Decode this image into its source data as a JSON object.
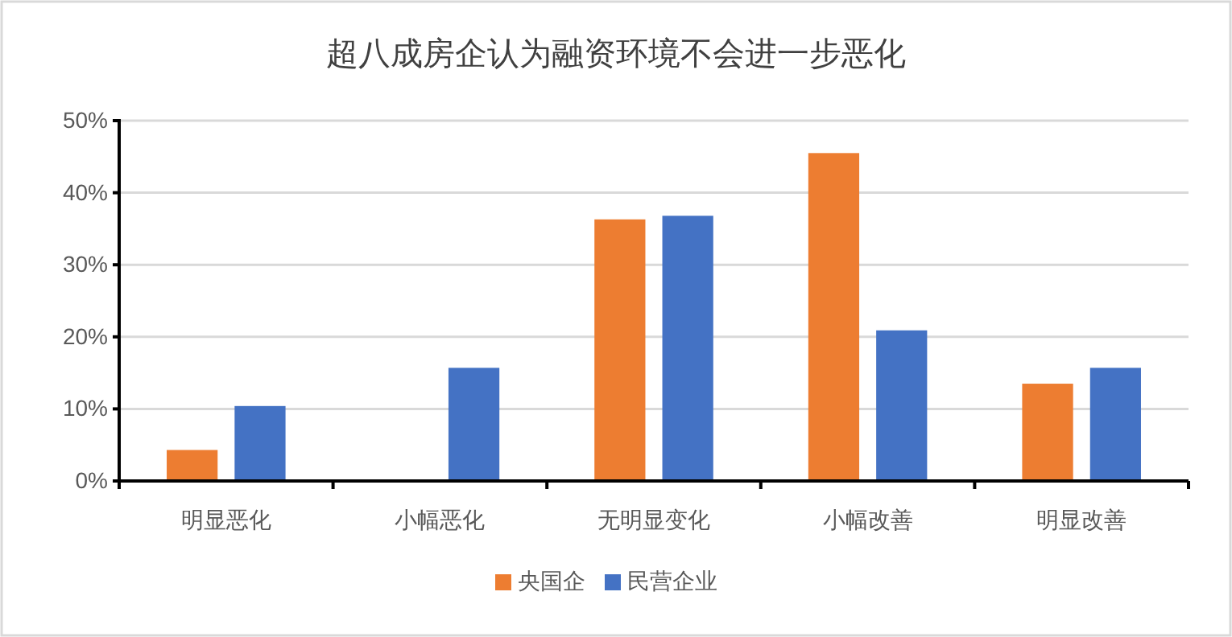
{
  "chart_data": {
    "type": "bar",
    "title": "超八成房企认为融资环境不会进一步恶化",
    "categories": [
      "明显恶化",
      "小幅恶化",
      "无明显变化",
      "小幅改善",
      "明显改善"
    ],
    "series": [
      {
        "name": "央国企",
        "color": "#ed7d31",
        "values": [
          4.3,
          0,
          36.3,
          45.5,
          13.5
        ]
      },
      {
        "name": "民营企业",
        "color": "#4472c4",
        "values": [
          10.4,
          15.7,
          36.8,
          20.9,
          15.7
        ]
      }
    ],
    "ylim": [
      0,
      50
    ],
    "yticks": [
      {
        "value": 0,
        "label": "0%"
      },
      {
        "value": 10,
        "label": "10%"
      },
      {
        "value": 20,
        "label": "20%"
      },
      {
        "value": 30,
        "label": "30%"
      },
      {
        "value": 40,
        "label": "40%"
      },
      {
        "value": 50,
        "label": "50%"
      }
    ],
    "grid": "y",
    "legend": "bottom"
  }
}
